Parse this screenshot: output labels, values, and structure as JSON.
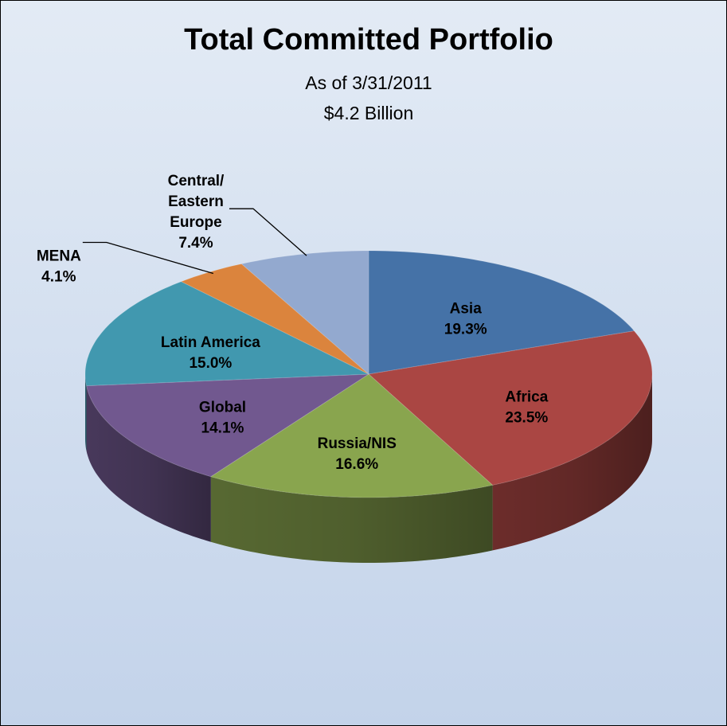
{
  "chart_data": {
    "type": "pie3d",
    "title": "Total Committed Portfolio",
    "subtitle": [
      "As of 3/31/2011",
      "$4.2 Billion"
    ],
    "categories": [
      "Asia",
      "Africa",
      "Russia/NIS",
      "Global",
      "Latin America",
      "MENA",
      "Central/ Eastern Europe"
    ],
    "values": [
      19.3,
      23.5,
      16.6,
      14.1,
      15.0,
      4.1,
      7.4
    ],
    "value_labels": [
      "19.3%",
      "23.5%",
      "16.6%",
      "14.1%",
      "15.0%",
      "4.1%",
      "7.4%"
    ],
    "colors": [
      "#4572a7",
      "#aa4643",
      "#89a54e",
      "#71588f",
      "#4198af",
      "#db843d",
      "#93a9cf"
    ]
  }
}
